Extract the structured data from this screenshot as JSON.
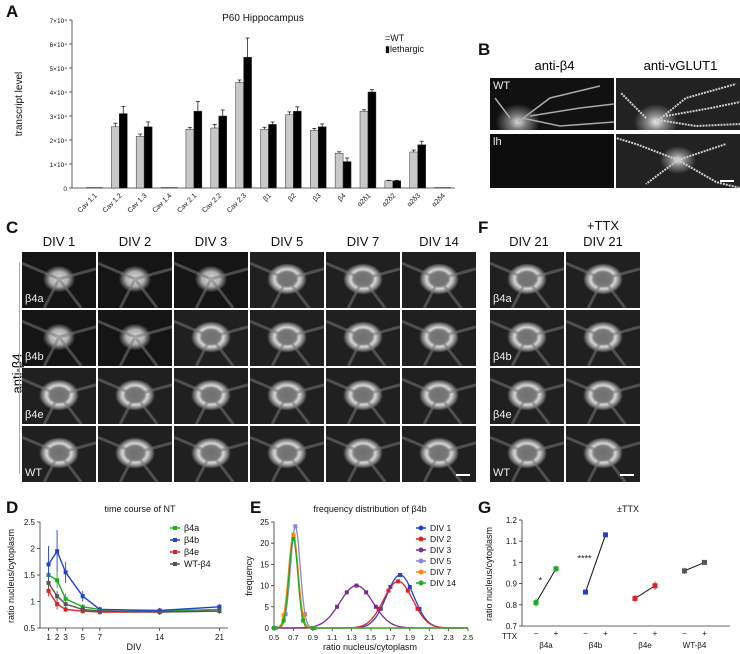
{
  "panel_letters": {
    "a": "A",
    "b": "B",
    "c": "C",
    "d": "D",
    "e": "E",
    "f": "F",
    "g": "G"
  },
  "panelA": {
    "title": "P60 Hippocampus",
    "ylabel": "transcript level",
    "legend": [
      "=WT",
      "▮lethargic"
    ],
    "colors": {
      "wt": "#c8c8c8",
      "lh": "#000000"
    },
    "chart_data": {
      "type": "bar",
      "categories": [
        "Cav 1.1",
        "Cav 1.2",
        "Cav 1.3",
        "Cav 1.4",
        "Cav 2.1",
        "Cav 2.2",
        "Cav 2.3",
        "β1",
        "β2",
        "β3",
        "β4",
        "α2δ1",
        "α2δ2",
        "α2δ3",
        "α2δ4"
      ],
      "ylim": [
        0,
        70000
      ],
      "yticks": [
        0,
        10000,
        20000,
        30000,
        40000,
        50000,
        60000,
        70000
      ],
      "ytick_labels": [
        "0",
        "1×10⁴",
        "2×10⁴",
        "3×10⁴",
        "4×10⁴",
        "5×10⁴",
        "6×10⁴",
        "7×10⁴"
      ],
      "series": [
        {
          "name": "WT",
          "values": [
            200,
            25500,
            21500,
            200,
            24500,
            25000,
            44000,
            24500,
            30500,
            24000,
            14500,
            32000,
            3000,
            15000,
            200
          ],
          "errors": [
            0,
            1500,
            1000,
            0,
            800,
            1500,
            1000,
            800,
            1200,
            800,
            600,
            600,
            200,
            800,
            0
          ]
        },
        {
          "name": "lethargic",
          "values": [
            200,
            31000,
            25500,
            200,
            32000,
            30000,
            54500,
            26500,
            32000,
            25500,
            11000,
            40000,
            3000,
            18000,
            200
          ],
          "errors": [
            0,
            3000,
            2000,
            0,
            4000,
            2500,
            8000,
            1000,
            1800,
            1200,
            1500,
            1000,
            200,
            1500,
            0
          ]
        }
      ]
    }
  },
  "panelB": {
    "col1": "anti-β4",
    "col2": "anti-vGLUT1",
    "row1": "WT",
    "row2": "lh"
  },
  "panelC": {
    "columns": [
      "DIV 1",
      "DIV 2",
      "DIV 3",
      "DIV 5",
      "DIV 7",
      "DIV 14"
    ],
    "rows": [
      "β4a",
      "β4b",
      "β4e",
      "WT"
    ],
    "side_label": "anti-β4"
  },
  "panelF": {
    "columns": [
      "DIV 21",
      "+TTX\nDIV 21"
    ],
    "col1": "DIV 21",
    "col2a": "+TTX",
    "col2b": "DIV 21",
    "rows": [
      "β4a",
      "β4b",
      "β4e",
      "WT"
    ]
  },
  "panelD": {
    "chart_data": {
      "type": "line",
      "title": "time course of NT",
      "xlabel": "DIV",
      "ylabel": "ratio nucleus/cytoplasm",
      "xticks": [
        1,
        2,
        3,
        5,
        7,
        14,
        21
      ],
      "xlim": [
        0,
        22
      ],
      "ylim": [
        0.5,
        2.5
      ],
      "yticks": [
        0.5,
        1.0,
        1.5,
        2.0,
        2.5
      ],
      "ytick_labels": [
        "0.5",
        "1",
        "1.5",
        "2",
        "2.5"
      ],
      "series": [
        {
          "name": "β4a",
          "color": "#22aa22",
          "x": [
            1,
            2,
            3,
            5,
            7,
            14,
            21
          ],
          "y": [
            1.5,
            1.4,
            1.05,
            0.9,
            0.85,
            0.82,
            0.85
          ],
          "err": [
            0.2,
            0.15,
            0.1,
            0.05,
            0.05,
            0.05,
            0.05
          ]
        },
        {
          "name": "β4b",
          "color": "#2244cc",
          "x": [
            1,
            2,
            3,
            5,
            7,
            14,
            21
          ],
          "y": [
            1.7,
            1.95,
            1.55,
            1.1,
            0.85,
            0.83,
            0.9
          ],
          "err": [
            0.35,
            0.4,
            0.2,
            0.1,
            0.05,
            0.05,
            0.05
          ]
        },
        {
          "name": "β4e",
          "color": "#dd2222",
          "x": [
            1,
            2,
            3,
            5,
            7,
            14,
            21
          ],
          "y": [
            1.2,
            0.95,
            0.85,
            0.82,
            0.8,
            0.8,
            0.82
          ],
          "err": [
            0.1,
            0.1,
            0.05,
            0.05,
            0.05,
            0.05,
            0.05
          ]
        },
        {
          "name": "WT-β4",
          "color": "#555555",
          "x": [
            1,
            2,
            3,
            5,
            7,
            14,
            21
          ],
          "y": [
            1.35,
            1.1,
            0.95,
            0.85,
            0.82,
            0.8,
            0.82
          ],
          "err": [
            0.1,
            0.1,
            0.05,
            0.05,
            0.05,
            0.05,
            0.05
          ]
        }
      ]
    }
  },
  "panelE": {
    "chart_data": {
      "type": "line",
      "title": "frequency distribution of β4b",
      "xlabel": "ratio nucleus/cytoplasm",
      "ylabel": "frequency",
      "xticks": [
        0.5,
        0.7,
        0.9,
        1.1,
        1.3,
        1.5,
        1.7,
        1.9,
        2.1,
        2.3,
        2.5
      ],
      "xtick_labels": [
        "0.5",
        "0.7",
        "0.9",
        "1.1",
        "1.3",
        "1.5",
        "1.7",
        "1.9",
        "2.1",
        "2.3",
        "2.5"
      ],
      "xlim": [
        0.5,
        2.5
      ],
      "ylim": [
        0,
        25
      ],
      "yticks": [
        0,
        5,
        10,
        15,
        20,
        25
      ],
      "series": [
        {
          "name": "DIV 1",
          "color": "#2244cc",
          "mean": 1.8,
          "sd": 0.14,
          "peak": 12.5
        },
        {
          "name": "DIV 2",
          "color": "#dd2222",
          "mean": 1.78,
          "sd": 0.15,
          "peak": 11
        },
        {
          "name": "DIV 3",
          "color": "#7a2a8a",
          "mean": 1.35,
          "sd": 0.17,
          "peak": 10
        },
        {
          "name": "DIV 5",
          "color": "#8888dd",
          "mean": 0.72,
          "sd": 0.05,
          "peak": 24
        },
        {
          "name": "DIV 7",
          "color": "#ff8800",
          "mean": 0.7,
          "sd": 0.05,
          "peak": 22
        },
        {
          "name": "DIV 14",
          "color": "#22aa22",
          "mean": 0.7,
          "sd": 0.045,
          "peak": 21
        }
      ]
    }
  },
  "panelG": {
    "chart_data": {
      "type": "scatter",
      "title": "±TTX",
      "ylabel": "ratio nucleus/cytoplasm",
      "ylim": [
        0.7,
        1.2
      ],
      "yticks": [
        0.7,
        0.8,
        0.9,
        1.0,
        1.1,
        1.2
      ],
      "ytick_labels": [
        "0.7",
        "0.8",
        "0.9",
        "1",
        "1.1",
        "1.2"
      ],
      "ttx_label": "TTX",
      "groups": [
        {
          "name": "β4a",
          "color": "#22aa22",
          "minus": 0.81,
          "plus": 0.97,
          "err_minus": 0.02,
          "err_plus": 0.015,
          "sig": "*"
        },
        {
          "name": "β4b",
          "color": "#2244cc",
          "minus": 0.86,
          "plus": 1.13,
          "err_minus": 0.01,
          "err_plus": 0.01,
          "sig": "****"
        },
        {
          "name": "β4e",
          "color": "#dd2222",
          "minus": 0.83,
          "plus": 0.89,
          "err_minus": 0.015,
          "err_plus": 0.02,
          "sig": ""
        },
        {
          "name": "WT-β4",
          "color": "#555555",
          "minus": 0.96,
          "plus": 1.0,
          "err_minus": 0.015,
          "err_plus": 0.01,
          "sig": ""
        }
      ],
      "minus_sign": "−",
      "plus_sign": "+"
    }
  }
}
